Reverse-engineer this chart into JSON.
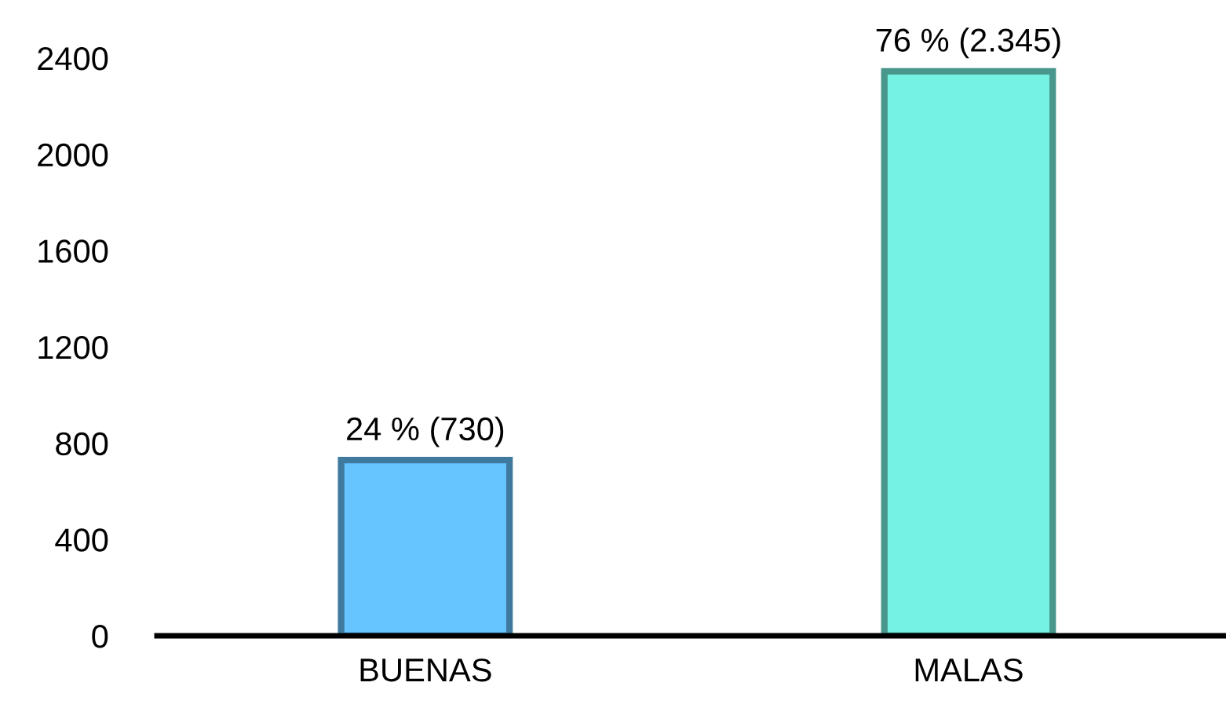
{
  "chart_data": {
    "type": "bar",
    "categories": [
      "BUENAS",
      "MALAS"
    ],
    "values": [
      730,
      2345
    ],
    "colors": [
      "#66c5ff",
      "#75f2e2"
    ],
    "value_labels": [
      "24 % (730)",
      "76 % (2.345)"
    ],
    "ylim": [
      0,
      2400
    ],
    "yticks": [
      0,
      400,
      800,
      1200,
      1600,
      2000,
      2400
    ],
    "grid": false,
    "legend": false
  }
}
